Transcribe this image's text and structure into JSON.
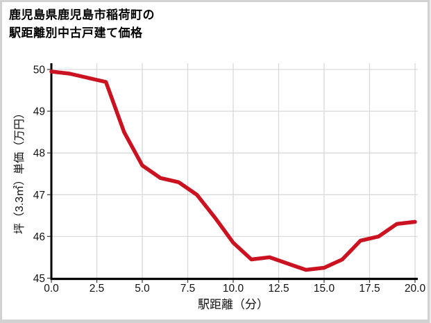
{
  "title": {
    "line1": "鹿児島県鹿児島市稲荷町の",
    "line2": "駅距離別中古戸建て価格"
  },
  "chart_data": {
    "type": "line",
    "title": "鹿児島県鹿児島市稲荷町の駅距離別中古戸建て価格",
    "xlabel": "駅距離（分）",
    "ylabel": "坪（3.3㎡）単価（万円）",
    "x": [
      0,
      1,
      2,
      3,
      4,
      5,
      6,
      7,
      8,
      9,
      10,
      11,
      12,
      13,
      14,
      15,
      16,
      17,
      18,
      19,
      20
    ],
    "y": [
      49.95,
      49.9,
      49.8,
      49.7,
      48.5,
      47.7,
      47.4,
      47.3,
      47.0,
      46.45,
      45.85,
      45.45,
      45.5,
      45.35,
      45.2,
      45.25,
      45.45,
      45.9,
      46.0,
      46.3,
      46.35
    ],
    "xlim": [
      0,
      20
    ],
    "ylim": [
      45,
      50
    ],
    "xticks": [
      0,
      2.5,
      5,
      7.5,
      10,
      12.5,
      15,
      17.5,
      20
    ],
    "xtick_labels": [
      "0.0",
      "2.5",
      "5.0",
      "7.5",
      "10.0",
      "12.5",
      "15.0",
      "17.5",
      "20.0"
    ],
    "yticks": [
      45,
      46,
      47,
      48,
      49,
      50
    ],
    "ytick_labels": [
      "45",
      "46",
      "47",
      "48",
      "49",
      "50"
    ],
    "grid": true,
    "legend": "none",
    "line_color": "#cb1220",
    "grid_color": "#d9d9d9",
    "spine_color": "#000000",
    "tick_color": "#444444"
  }
}
